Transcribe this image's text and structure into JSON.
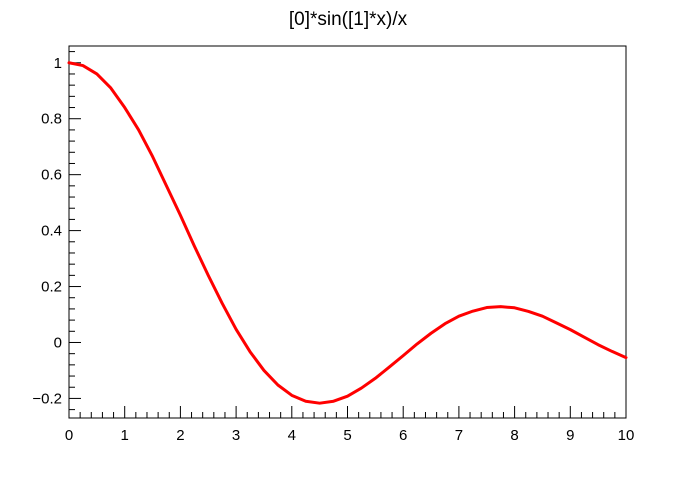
{
  "chart_data": {
    "type": "line",
    "title": "[0]*sin([1]*x)/x",
    "xlabel": "",
    "ylabel": "",
    "xlim": [
      0,
      10
    ],
    "ylim": [
      -0.27,
      1.06
    ],
    "x_ticks": [
      0,
      1,
      2,
      3,
      4,
      5,
      6,
      7,
      8,
      9,
      10
    ],
    "x_tick_labels": [
      "0",
      "1",
      "2",
      "3",
      "4",
      "5",
      "6",
      "7",
      "8",
      "9",
      "10"
    ],
    "y_ticks": [
      -0.2,
      0,
      0.2,
      0.4,
      0.6,
      0.8,
      1
    ],
    "y_tick_labels": [
      "−0.2",
      "0",
      "0.2",
      "0.4",
      "0.6",
      "0.8",
      "1"
    ],
    "grid": false,
    "legend": "none",
    "series": [
      {
        "color": "#ff0000",
        "x": [
          0,
          0.25,
          0.5,
          0.75,
          1,
          1.25,
          1.5,
          1.75,
          2,
          2.25,
          2.5,
          2.75,
          3,
          3.25,
          3.5,
          3.75,
          4,
          4.25,
          4.5,
          4.75,
          5,
          5.25,
          5.5,
          5.75,
          6,
          6.25,
          6.5,
          6.75,
          7,
          7.25,
          7.5,
          7.75,
          8,
          8.25,
          8.5,
          8.75,
          9,
          9.25,
          9.5,
          9.75,
          10
        ],
        "y": [
          1.0,
          0.99,
          0.96,
          0.91,
          0.84,
          0.76,
          0.665,
          0.56,
          0.455,
          0.345,
          0.24,
          0.14,
          0.047,
          -0.033,
          -0.1,
          -0.152,
          -0.189,
          -0.21,
          -0.217,
          -0.21,
          -0.192,
          -0.163,
          -0.128,
          -0.088,
          -0.047,
          -0.005,
          0.033,
          0.067,
          0.094,
          0.112,
          0.125,
          0.128,
          0.124,
          0.111,
          0.094,
          0.07,
          0.046,
          0.019,
          -0.008,
          -0.032,
          -0.054
        ]
      }
    ]
  }
}
